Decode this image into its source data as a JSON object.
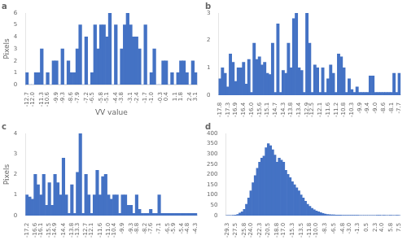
{
  "chart_data": [
    {
      "type": "bar",
      "title": "a",
      "categories": [
        "-12.7",
        null,
        "-12.0",
        null,
        null,
        "-11.3",
        null,
        "-10.6",
        null,
        null,
        "-9.9",
        null,
        "-9.3",
        null,
        null,
        "-8.6",
        null,
        "-7.9",
        null,
        null,
        "-7.2",
        null,
        "-6.5",
        null,
        null,
        "-5.8",
        null,
        "-5.1",
        null,
        null,
        "-4.4",
        null,
        "-3.8",
        null,
        null,
        "-3.1",
        null,
        "-2.4",
        null,
        null,
        "-1.7",
        null,
        "-1.0",
        null,
        null,
        "-0.3",
        null,
        "0.4",
        null,
        null,
        "1.1",
        null,
        "1.8",
        null,
        null,
        "2.4",
        null,
        "3.1"
      ],
      "values": [
        1,
        0,
        0,
        1,
        1,
        3,
        0,
        1,
        0,
        2,
        2,
        0,
        3,
        0,
        2,
        1,
        1,
        3,
        5,
        0,
        4,
        0,
        1,
        5,
        3,
        5,
        5,
        4,
        6,
        0,
        5,
        0,
        3,
        5,
        6,
        5,
        4,
        4,
        3,
        0,
        5,
        0,
        1,
        3,
        0,
        0,
        2,
        2,
        0,
        1,
        0,
        1,
        2,
        2,
        1,
        0,
        2,
        1
      ],
      "color": "#4472C4",
      "ylim": [
        0,
        6
      ],
      "yticks": [
        0,
        1,
        2,
        3,
        4,
        5,
        6
      ],
      "grid": false,
      "xlabel": "VV value",
      "ylabel": "Pixels"
    },
    {
      "type": "bar",
      "title": "b",
      "categories": [
        "-17.8",
        null,
        null,
        "-17.3",
        null,
        null,
        "-16.9",
        null,
        null,
        "-16.4",
        null,
        null,
        "-16.0",
        null,
        null,
        "-15.6",
        null,
        null,
        "-15.1",
        null,
        null,
        "-14.7",
        null,
        null,
        "-14.3",
        null,
        null,
        "-13.8",
        null,
        null,
        "-13.4",
        null,
        null,
        "-12.9",
        null,
        "-12.5",
        null,
        null,
        "-12.1",
        null,
        null,
        "-11.6",
        null,
        null,
        "-11.2",
        null,
        null,
        "-10.8",
        null,
        null,
        "-10.3",
        null,
        null,
        "-9.9",
        null,
        null,
        "-9.4",
        null,
        null,
        "-9.0",
        null,
        null,
        "-8.6",
        null,
        null,
        "-8.1",
        null,
        null,
        "-7.7"
      ],
      "values": [
        0.6,
        1.0,
        0.8,
        0.3,
        1.5,
        1.2,
        0.5,
        1.0,
        1.0,
        1.2,
        0.4,
        1.3,
        0.1,
        1.9,
        1.3,
        1.4,
        1.1,
        1.2,
        0.8,
        0.75,
        1.9,
        0.1,
        2.6,
        0.1,
        0.9,
        0.8,
        1.9,
        1.0,
        2.8,
        3.0,
        1.0,
        0.9,
        0.1,
        3.0,
        1.9,
        0.1,
        1.1,
        1.0,
        0.1,
        1.0,
        0.1,
        0.6,
        1.1,
        0.8,
        0.1,
        1.5,
        1.4,
        1.0,
        0.1,
        0.6,
        0.2,
        0.1,
        0.3,
        0.1,
        0.1,
        0.1,
        0.1,
        0.7,
        0.7,
        0.1,
        0.1,
        0.1,
        0.1,
        0.1,
        0.1,
        0.1,
        0.8,
        0.1,
        0.8
      ],
      "color": "#4472C4",
      "ylim": [
        0,
        3
      ],
      "yticks": [
        0,
        1,
        2,
        3
      ],
      "grid": false
    },
    {
      "type": "bar",
      "title": "c",
      "categories": [
        "-17.2",
        null,
        null,
        "-16.6",
        null,
        "-16.1",
        null,
        null,
        "-15.5",
        null,
        "-14.9",
        null,
        null,
        "-14.4",
        null,
        null,
        "-13.8",
        null,
        "-13.3",
        null,
        null,
        "-12.7",
        null,
        "-12.1",
        null,
        null,
        "-11.6",
        null,
        null,
        "-11.0",
        null,
        "-10.4",
        null,
        null,
        "-9.9",
        null,
        null,
        "-9.3",
        null,
        "-8.8",
        null,
        null,
        "-8.2",
        null,
        "-7.6",
        null,
        null,
        "-7.1",
        null,
        null,
        "-6.5",
        null,
        "-5.9",
        null,
        null,
        "-5.4",
        null,
        "-4.8",
        null,
        null,
        "-4.3"
      ],
      "values": [
        1,
        0.9,
        0.8,
        2,
        1.5,
        1,
        2,
        0.5,
        1.6,
        0.5,
        2,
        1.6,
        1,
        2.8,
        1,
        0.1,
        1.5,
        0.1,
        2.1,
        4,
        0.1,
        2,
        1,
        0.1,
        1,
        2.2,
        1,
        1.9,
        2,
        1,
        0.8,
        1,
        1,
        0.1,
        1.0,
        1,
        0.5,
        0.5,
        0.1,
        1,
        0.3,
        0.1,
        0.1,
        0.1,
        0.3,
        0.1,
        0.1,
        1,
        0.1,
        0.1,
        0.1,
        0.1,
        0.1,
        0.1,
        0.1,
        0.1,
        0.1,
        0.1,
        0.1,
        0.1,
        0.1
      ],
      "color": "#4472C4",
      "ylim": [
        0,
        4
      ],
      "yticks": [
        0,
        1,
        2,
        3,
        4
      ],
      "grid": false,
      "ylabel": "Pixels"
    },
    {
      "type": "bar",
      "title": "d",
      "categories": [
        "-29.3",
        null,
        null,
        null,
        "-27.5",
        null,
        null,
        null,
        "-25.8",
        null,
        null,
        "-24.0",
        null,
        null,
        null,
        "-22.3",
        null,
        null,
        null,
        "-20.5",
        null,
        null,
        null,
        "-18.8",
        null,
        null,
        "-17.0",
        null,
        null,
        null,
        "-15.3",
        null,
        null,
        null,
        "-13.5",
        null,
        null,
        null,
        "-11.8",
        null,
        null,
        "-10.0",
        null,
        null,
        null,
        "-8.3",
        null,
        null,
        null,
        "-6.5",
        null,
        null,
        null,
        "-4.8",
        null,
        null,
        "-3.0",
        null,
        null,
        null,
        "-1.3",
        null,
        null,
        null,
        "0.5",
        null,
        null,
        null,
        "2.3",
        null,
        null,
        "4.0",
        null,
        null,
        null,
        "5.8",
        null,
        null,
        null,
        "7.5"
      ],
      "values": [
        0,
        0,
        0,
        1,
        2,
        5,
        12,
        18,
        30,
        55,
        85,
        120,
        160,
        195,
        230,
        260,
        280,
        290,
        330,
        350,
        340,
        320,
        295,
        260,
        280,
        270,
        260,
        220,
        200,
        185,
        165,
        150,
        135,
        120,
        100,
        85,
        70,
        55,
        45,
        35,
        28,
        22,
        18,
        14,
        10,
        7,
        5,
        4,
        3,
        3,
        2,
        2,
        2,
        1,
        1,
        1,
        1,
        1,
        1,
        1,
        1,
        0,
        0,
        0,
        0,
        0,
        0,
        0,
        0,
        1,
        1,
        0,
        1,
        0,
        0,
        1,
        0,
        0,
        1,
        0
      ],
      "color": "#4472C4",
      "ylim": [
        0,
        400
      ],
      "yticks": [
        0,
        50,
        100,
        150,
        200,
        250,
        300,
        350,
        400
      ],
      "grid": false
    }
  ]
}
